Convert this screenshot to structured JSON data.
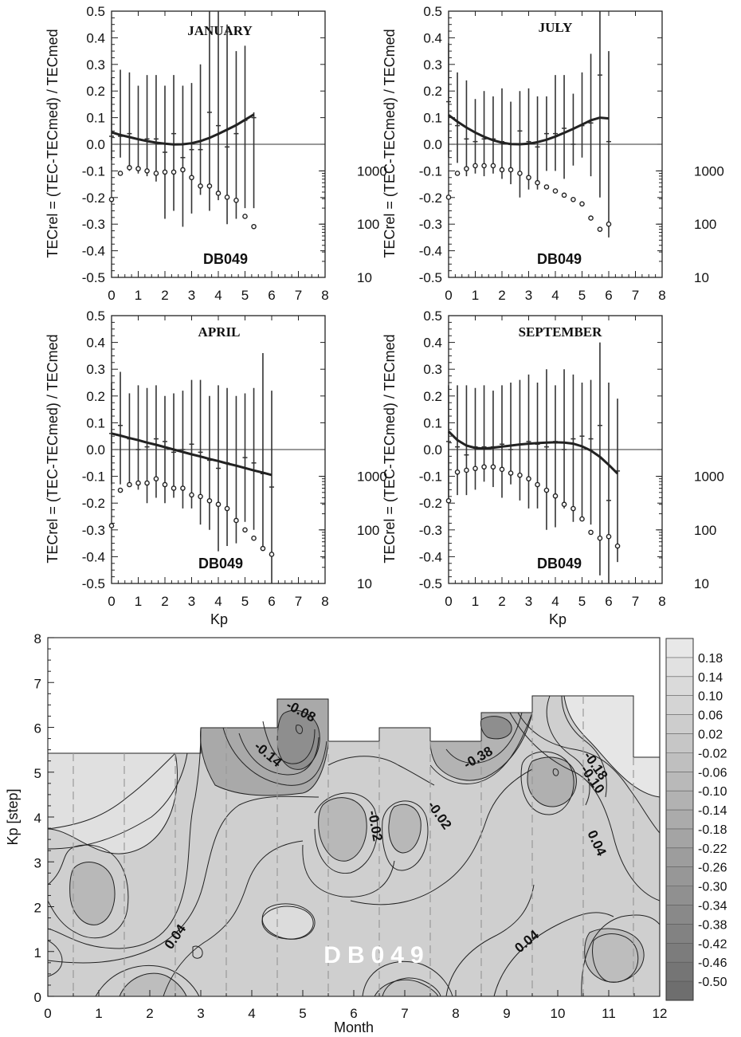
{
  "chart_data": [
    {
      "type": "scatter",
      "panel": "JANUARY",
      "title": "JANUARY",
      "station": "DB049",
      "ylabel": "TECrel = (TEC-TECmed) / TECmed",
      "xlabel": "",
      "xlim": [
        0,
        8
      ],
      "ylim": [
        -0.5,
        0.5
      ],
      "xticks": [
        "0",
        "1",
        "2",
        "3",
        "4",
        "5",
        "6",
        "7",
        "8"
      ],
      "yticks": [
        "-0.5",
        "-0.4",
        "-0.3",
        "-0.2",
        "-0.1",
        "0.0",
        "0.1",
        "0.2",
        "0.3",
        "0.4",
        "0.5"
      ],
      "count_axis_ticks": [
        "10",
        "100",
        "1000"
      ],
      "kp": [
        0,
        0.33,
        0.67,
        1,
        1.33,
        1.67,
        2,
        2.33,
        2.67,
        3,
        3.33,
        3.67,
        4,
        4.33,
        4.67,
        5,
        5.33
      ],
      "median": [
        0.03,
        0.03,
        0.04,
        0.02,
        0.02,
        0.02,
        -0.03,
        0.04,
        -0.05,
        -0.02,
        -0.02,
        0.12,
        0.07,
        -0.01,
        0.04,
        0.09,
        0.1
      ],
      "upper": [
        0.25,
        0.28,
        0.27,
        0.22,
        0.26,
        0.26,
        0.22,
        0.26,
        0.22,
        0.23,
        0.3,
        0.5,
        0.5,
        0.45,
        0.35,
        0.37,
        0.12
      ],
      "lower": [
        -0.06,
        -0.05,
        -0.1,
        -0.11,
        -0.12,
        -0.14,
        -0.28,
        -0.25,
        -0.31,
        -0.26,
        -0.19,
        -0.25,
        -0.21,
        -0.3,
        -0.28,
        -0.24,
        -0.24
      ],
      "fit": [
        0.045,
        0.035,
        0.027,
        0.019,
        0.012,
        0.006,
        0.002,
        -0.001,
        0.0,
        0.004,
        0.012,
        0.024,
        0.039,
        0.055,
        0.072,
        0.092,
        0.112
      ],
      "counts": [
        290,
        900,
        1150,
        1100,
        1000,
        900,
        950,
        950,
        1050,
        750,
        520,
        520,
        380,
        320,
        280,
        140,
        90
      ]
    },
    {
      "type": "scatter",
      "panel": "JULY",
      "title": "JULY",
      "station": "DB049",
      "ylabel": "TECrel = (TEC-TECmed) / TECmed",
      "xlabel": "",
      "xlim": [
        0,
        8
      ],
      "ylim": [
        -0.5,
        0.5
      ],
      "xticks": [
        "0",
        "1",
        "2",
        "3",
        "4",
        "5",
        "6",
        "7",
        "8"
      ],
      "yticks": [
        "-0.5",
        "-0.4",
        "-0.3",
        "-0.2",
        "-0.1",
        "0.0",
        "0.1",
        "0.2",
        "0.3",
        "0.4",
        "0.5"
      ],
      "count_axis_ticks": [
        "10",
        "100",
        "1000"
      ],
      "kp": [
        0,
        0.33,
        0.67,
        1,
        1.33,
        1.67,
        2,
        2.33,
        2.67,
        3,
        3.33,
        3.67,
        4,
        4.33,
        4.67,
        5,
        5.33,
        5.67,
        6
      ],
      "median": [
        0.16,
        0.07,
        0.02,
        0.01,
        0.02,
        0.02,
        0.01,
        0.0,
        0.05,
        0.01,
        -0.01,
        0.04,
        0.04,
        0.06,
        0.0,
        0.07,
        0.08,
        0.26,
        0.01
      ],
      "upper": [
        0.38,
        0.27,
        0.24,
        0.17,
        0.2,
        0.18,
        0.21,
        0.16,
        0.2,
        0.21,
        0.18,
        0.18,
        0.26,
        0.26,
        0.19,
        0.27,
        0.34,
        0.5,
        0.35
      ],
      "lower": [
        -0.05,
        -0.07,
        -0.12,
        -0.11,
        -0.12,
        -0.11,
        -0.13,
        -0.15,
        -0.2,
        -0.17,
        -0.17,
        -0.1,
        -0.1,
        -0.13,
        -0.08,
        -0.05,
        -0.12,
        -0.2,
        -0.35
      ],
      "fit": [
        0.11,
        0.085,
        0.063,
        0.044,
        0.028,
        0.015,
        0.006,
        0.001,
        0.0,
        0.002,
        0.008,
        0.017,
        0.029,
        0.043,
        0.058,
        0.074,
        0.09,
        0.1,
        0.097
      ],
      "counts": [
        320,
        900,
        1100,
        1250,
        1250,
        1250,
        1050,
        1050,
        900,
        750,
        600,
        500,
        420,
        350,
        290,
        240,
        130,
        80,
        100
      ]
    },
    {
      "type": "scatter",
      "panel": "APRIL",
      "title": "APRIL",
      "station": "DB049",
      "ylabel": "TECrel = (TEC-TECmed) / TECmed",
      "xlabel": "Kp",
      "xlim": [
        0,
        8
      ],
      "ylim": [
        -0.5,
        0.5
      ],
      "xticks": [
        "0",
        "1",
        "2",
        "3",
        "4",
        "5",
        "6",
        "7",
        "8"
      ],
      "yticks": [
        "-0.5",
        "-0.4",
        "-0.3",
        "-0.2",
        "-0.1",
        "0.0",
        "0.1",
        "0.2",
        "0.3",
        "0.4",
        "0.5"
      ],
      "count_axis_ticks": [
        "10",
        "100",
        "1000"
      ],
      "kp": [
        0,
        0.33,
        0.67,
        1,
        1.33,
        1.67,
        2,
        2.33,
        2.67,
        3,
        3.33,
        3.67,
        4,
        4.33,
        4.67,
        5,
        5.33,
        5.67,
        6
      ],
      "median": [
        0.06,
        0.09,
        0.04,
        0.0,
        0.01,
        0.04,
        0.03,
        -0.01,
        0.0,
        0.02,
        -0.01,
        -0.04,
        -0.07,
        -0.05,
        -0.06,
        -0.03,
        -0.05,
        -0.09,
        -0.14
      ],
      "upper": [
        0.25,
        0.29,
        0.21,
        0.24,
        0.23,
        0.24,
        0.2,
        0.21,
        0.22,
        0.26,
        0.26,
        0.2,
        0.24,
        0.23,
        0.2,
        0.21,
        0.23,
        0.36,
        0.22
      ],
      "lower": [
        -0.13,
        -0.13,
        -0.14,
        -0.15,
        -0.2,
        -0.18,
        -0.2,
        -0.18,
        -0.22,
        -0.22,
        -0.28,
        -0.3,
        -0.38,
        -0.36,
        -0.35,
        -0.27,
        -0.3,
        -0.36,
        -0.5
      ],
      "fit": [
        0.06,
        0.052,
        0.043,
        0.035,
        0.026,
        0.018,
        0.009,
        0.0,
        -0.009,
        -0.018,
        -0.026,
        -0.035,
        -0.043,
        -0.052,
        -0.06,
        -0.069,
        -0.078,
        -0.086,
        -0.095
      ],
      "counts": [
        120,
        550,
        700,
        750,
        750,
        900,
        700,
        600,
        600,
        450,
        420,
        350,
        300,
        250,
        150,
        100,
        70,
        45,
        35
      ]
    },
    {
      "type": "scatter",
      "panel": "SEPTEMBER",
      "title": "SEPTEMBER",
      "station": "DB049",
      "ylabel": "TECrel = (TEC-TECmed) / TECmed",
      "xlabel": "Kp",
      "xlim": [
        0,
        8
      ],
      "ylim": [
        -0.5,
        0.5
      ],
      "xticks": [
        "0",
        "1",
        "2",
        "3",
        "4",
        "5",
        "6",
        "7",
        "8"
      ],
      "yticks": [
        "-0.5",
        "-0.4",
        "-0.3",
        "-0.2",
        "-0.1",
        "0.0",
        "0.1",
        "0.2",
        "0.3",
        "0.4",
        "0.5"
      ],
      "count_axis_ticks": [
        "10",
        "100",
        "1000"
      ],
      "kp": [
        0,
        0.33,
        0.67,
        1,
        1.33,
        1.67,
        2,
        2.33,
        2.67,
        3,
        3.33,
        3.67,
        4,
        4.33,
        4.67,
        5,
        5.33,
        5.67,
        6,
        6.33
      ],
      "median": [
        0.03,
        0.01,
        -0.02,
        0.01,
        0.01,
        0.01,
        0.02,
        0.0,
        0.02,
        0.03,
        0.02,
        0.01,
        0.03,
        0.0,
        0.04,
        0.05,
        0.04,
        0.09,
        -0.19,
        -0.08
      ],
      "upper": [
        0.24,
        0.24,
        0.24,
        0.23,
        0.24,
        0.22,
        0.24,
        0.25,
        0.26,
        0.28,
        0.25,
        0.3,
        0.24,
        0.3,
        0.28,
        0.25,
        0.26,
        0.4,
        0.25,
        0.19
      ],
      "lower": [
        -0.18,
        -0.17,
        -0.17,
        -0.15,
        -0.12,
        -0.14,
        -0.18,
        -0.13,
        -0.19,
        -0.22,
        -0.22,
        -0.3,
        -0.29,
        -0.22,
        -0.27,
        -0.25,
        -0.28,
        -0.47,
        -0.5,
        -0.42
      ],
      "fit": [
        0.068,
        0.035,
        0.015,
        0.006,
        0.004,
        0.007,
        0.011,
        0.015,
        0.019,
        0.022,
        0.024,
        0.026,
        0.027,
        0.026,
        0.022,
        0.012,
        -0.004,
        -0.027,
        -0.057,
        -0.09
      ],
      "counts": [
        350,
        1200,
        1300,
        1400,
        1500,
        1500,
        1350,
        1150,
        1050,
        900,
        700,
        550,
        430,
        300,
        250,
        160,
        90,
        70,
        75,
        50
      ]
    },
    {
      "type": "heatmap",
      "panel": "contour",
      "station": "DB049",
      "xlabel": "Month",
      "ylabel": "Kp [step]",
      "xlim": [
        0,
        12
      ],
      "ylim": [
        0,
        8
      ],
      "xticks": [
        "0",
        "1",
        "2",
        "3",
        "4",
        "5",
        "6",
        "7",
        "8",
        "9",
        "10",
        "11",
        "12"
      ],
      "yticks": [
        "0",
        "1",
        "2",
        "3",
        "4",
        "5",
        "6",
        "7",
        "8"
      ],
      "colorbar": [
        "0.18",
        "0.14",
        "0.10",
        "0.06",
        "0.02",
        "-0.02",
        "-0.06",
        "-0.10",
        "-0.14",
        "-0.18",
        "-0.22",
        "-0.26",
        "-0.30",
        "-0.34",
        "-0.38",
        "-0.42",
        "-0.46",
        "-0.50"
      ],
      "month_max_kp": [
        5.43,
        5.43,
        6.0,
        6.0,
        6.67,
        5.67,
        6.0,
        5.67,
        6.33,
        6.67,
        6.67,
        5.33
      ],
      "contour_labels": [
        "-0.08",
        "-0.14",
        "-0.02",
        "-0.02",
        "-0.38",
        "-0.18",
        "-0.10",
        "0.04",
        "0.04",
        "0.04"
      ]
    }
  ]
}
